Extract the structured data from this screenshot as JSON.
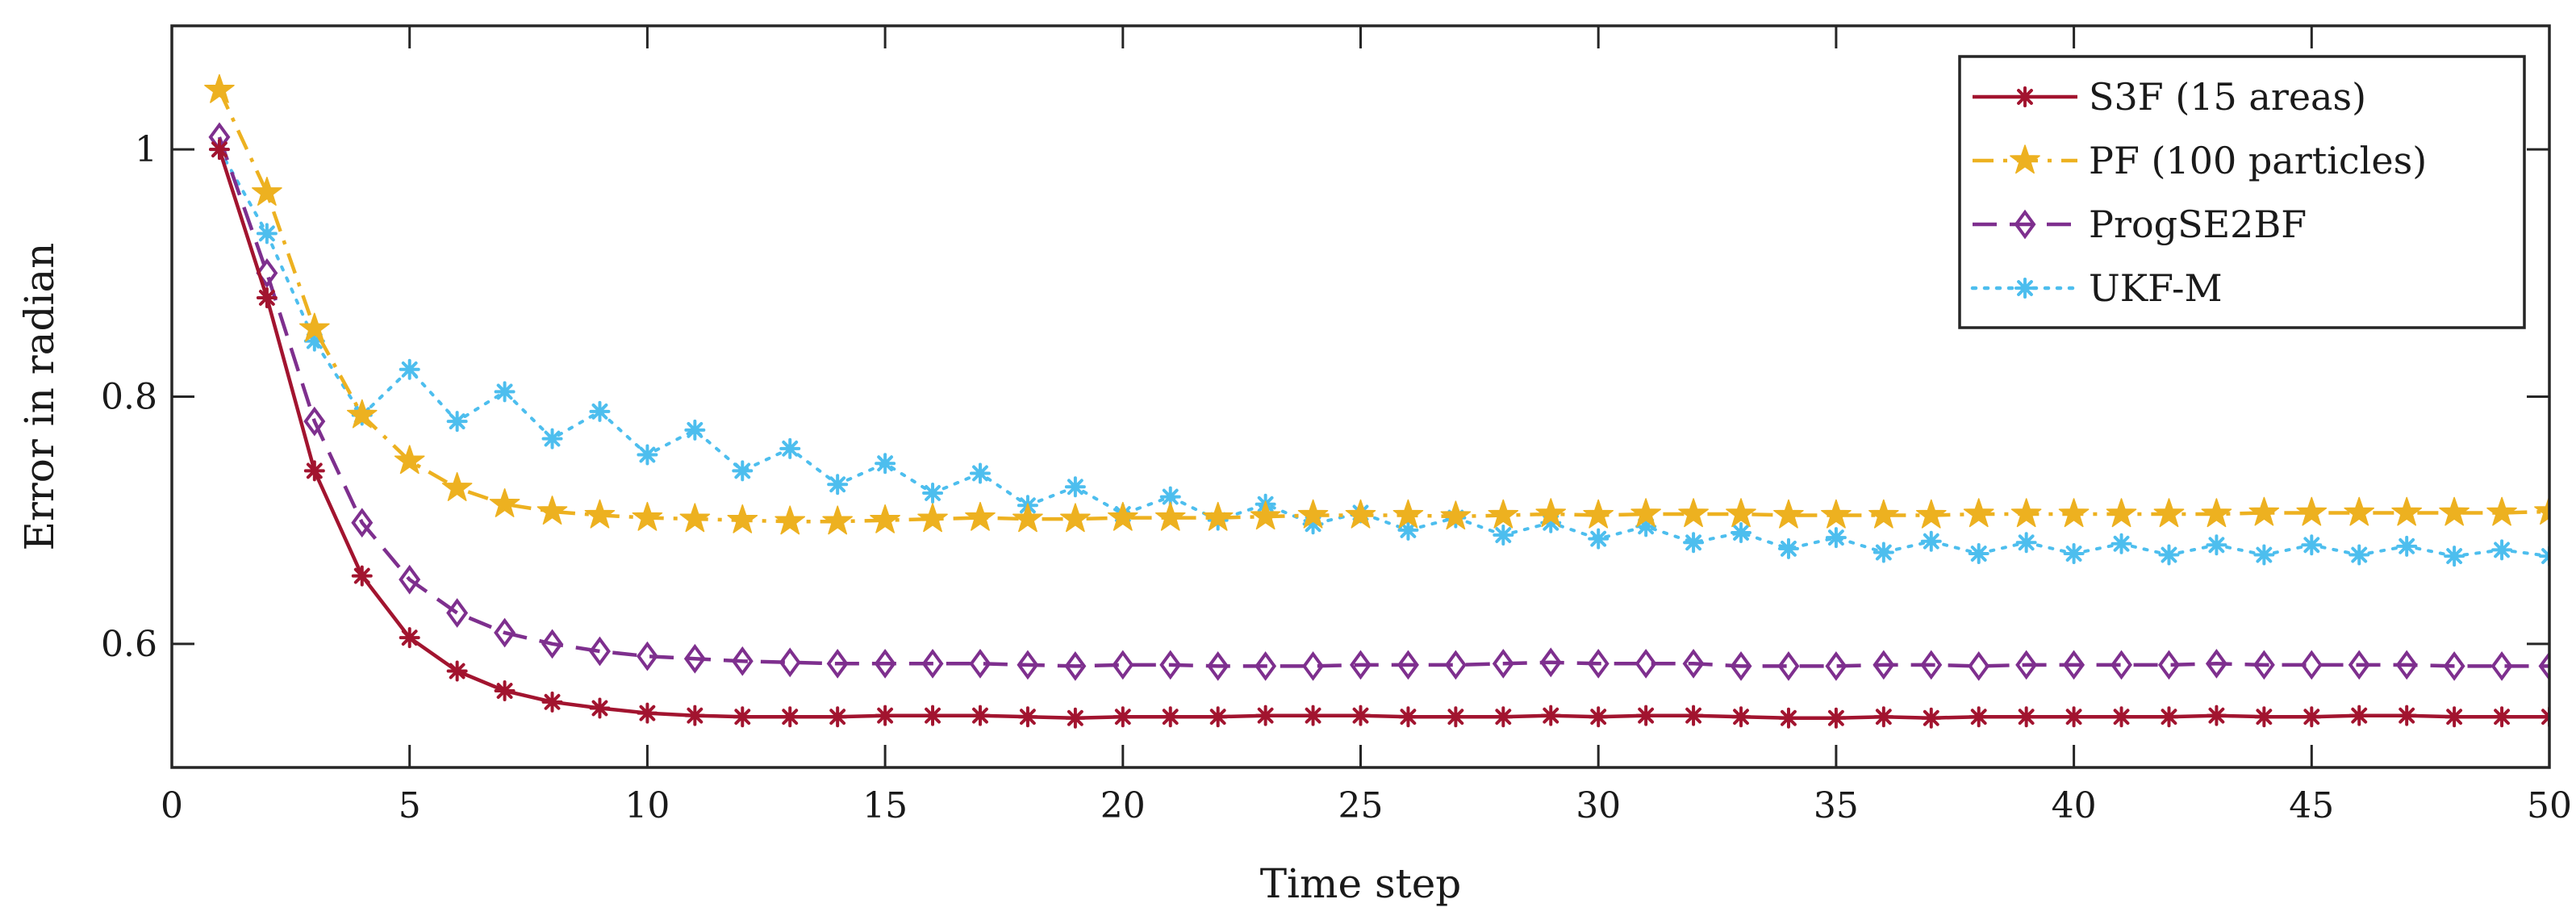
{
  "chart_data": {
    "type": "line",
    "xlabel": "Time step",
    "ylabel": "Error in radian",
    "xlim": [
      0,
      50
    ],
    "ylim": [
      0.5,
      1.1
    ],
    "xticks": [
      0,
      5,
      10,
      15,
      20,
      25,
      30,
      35,
      40,
      45,
      50
    ],
    "yticks": [
      0.6,
      0.8,
      1
    ],
    "xtick_labels": [
      "0",
      "5",
      "10",
      "15",
      "20",
      "25",
      "30",
      "35",
      "40",
      "45",
      "50"
    ],
    "ytick_labels": [
      "0.6",
      "0.8",
      "1"
    ],
    "grid": false,
    "legend_position": "top-right",
    "x": [
      1,
      2,
      3,
      4,
      5,
      6,
      7,
      8,
      9,
      10,
      11,
      12,
      13,
      14,
      15,
      16,
      17,
      18,
      19,
      20,
      21,
      22,
      23,
      24,
      25,
      26,
      27,
      28,
      29,
      30,
      31,
      32,
      33,
      34,
      35,
      36,
      37,
      38,
      39,
      40,
      41,
      42,
      43,
      44,
      45,
      46,
      47,
      48,
      49,
      50
    ],
    "series": [
      {
        "name": "S3F (15 areas)",
        "color": "#A2142F",
        "dash": "solid",
        "marker": "asterisk",
        "values": [
          1.0,
          0.88,
          0.74,
          0.655,
          0.605,
          0.578,
          0.562,
          0.553,
          0.548,
          0.544,
          0.542,
          0.541,
          0.541,
          0.541,
          0.542,
          0.542,
          0.542,
          0.541,
          0.54,
          0.541,
          0.541,
          0.541,
          0.542,
          0.542,
          0.542,
          0.541,
          0.541,
          0.541,
          0.542,
          0.541,
          0.542,
          0.542,
          0.541,
          0.54,
          0.54,
          0.541,
          0.54,
          0.541,
          0.541,
          0.541,
          0.541,
          0.541,
          0.542,
          0.541,
          0.541,
          0.542,
          0.542,
          0.541,
          0.541,
          0.541
        ]
      },
      {
        "name": "PF (100 particles)",
        "color": "#EDB120",
        "dash": "dashdot",
        "marker": "star",
        "values": [
          1.048,
          0.965,
          0.855,
          0.785,
          0.748,
          0.726,
          0.713,
          0.707,
          0.704,
          0.702,
          0.701,
          0.7,
          0.699,
          0.699,
          0.7,
          0.701,
          0.702,
          0.701,
          0.701,
          0.702,
          0.702,
          0.702,
          0.703,
          0.704,
          0.704,
          0.704,
          0.703,
          0.704,
          0.705,
          0.704,
          0.705,
          0.705,
          0.705,
          0.704,
          0.704,
          0.704,
          0.704,
          0.705,
          0.705,
          0.705,
          0.705,
          0.705,
          0.705,
          0.706,
          0.706,
          0.706,
          0.706,
          0.706,
          0.706,
          0.707
        ]
      },
      {
        "name": "ProgSE2BF",
        "color": "#7E2F8E",
        "dash": "dashed",
        "marker": "diamond",
        "values": [
          1.01,
          0.9,
          0.78,
          0.698,
          0.652,
          0.625,
          0.609,
          0.6,
          0.594,
          0.59,
          0.588,
          0.586,
          0.585,
          0.584,
          0.584,
          0.584,
          0.584,
          0.583,
          0.582,
          0.583,
          0.583,
          0.582,
          0.582,
          0.582,
          0.583,
          0.583,
          0.583,
          0.584,
          0.585,
          0.584,
          0.584,
          0.584,
          0.582,
          0.582,
          0.582,
          0.583,
          0.583,
          0.582,
          0.583,
          0.583,
          0.583,
          0.583,
          0.584,
          0.583,
          0.583,
          0.583,
          0.583,
          0.582,
          0.582,
          0.582
        ]
      },
      {
        "name": "UKF-M",
        "color": "#4DBEEE",
        "dash": "dotted",
        "marker": "asterisk",
        "values": [
          1.0,
          0.932,
          0.845,
          0.785,
          0.822,
          0.78,
          0.804,
          0.766,
          0.788,
          0.753,
          0.773,
          0.74,
          0.758,
          0.729,
          0.746,
          0.722,
          0.738,
          0.712,
          0.727,
          0.705,
          0.719,
          0.7,
          0.713,
          0.697,
          0.706,
          0.692,
          0.702,
          0.688,
          0.698,
          0.685,
          0.695,
          0.682,
          0.69,
          0.677,
          0.686,
          0.674,
          0.683,
          0.673,
          0.682,
          0.673,
          0.681,
          0.672,
          0.68,
          0.672,
          0.68,
          0.672,
          0.679,
          0.671,
          0.676,
          0.671
        ]
      }
    ]
  }
}
